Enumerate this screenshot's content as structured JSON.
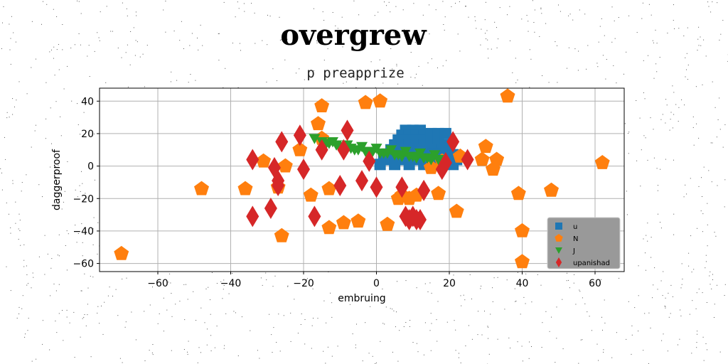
{
  "chart_data": {
    "type": "scatter",
    "title": "overgrew",
    "subtitle": "p preapprize",
    "xlabel": "embruing",
    "ylabel": "daggerproof",
    "xlim": [
      -76,
      68
    ],
    "ylim": [
      -65,
      48
    ],
    "xticks": [
      -60,
      -40,
      -20,
      0,
      20,
      40,
      60
    ],
    "yticks": [
      -60,
      -40,
      -20,
      0,
      20,
      40
    ],
    "xtick_labels": [
      "−60",
      "−40",
      "−20",
      "0",
      "20",
      "40",
      "60"
    ],
    "ytick_labels": [
      "−60",
      "−40",
      "−20",
      "0",
      "20",
      "40"
    ],
    "grid": true,
    "legend_position": "lower-right",
    "series": [
      {
        "name": "u",
        "marker": "square",
        "color": "#1f77b4",
        "x": [
          8,
          10,
          12,
          7,
          9,
          11,
          13,
          6,
          8,
          10,
          12,
          14,
          16,
          5,
          7,
          9,
          11,
          13,
          15,
          17,
          19,
          4,
          6,
          8,
          10,
          12,
          14,
          16,
          18,
          20,
          3,
          5,
          7,
          9,
          11,
          13,
          15,
          17,
          19,
          21,
          2,
          4,
          6,
          8,
          10,
          12,
          14,
          16,
          18,
          20,
          22,
          1,
          5,
          9,
          13,
          17,
          21,
          15,
          17,
          19
        ],
        "y": [
          22,
          22,
          22,
          19,
          19,
          19,
          19,
          16,
          16,
          16,
          16,
          16,
          16,
          13,
          13,
          13,
          13,
          13,
          13,
          13,
          13,
          10,
          10,
          10,
          10,
          10,
          10,
          10,
          10,
          10,
          7,
          7,
          7,
          7,
          7,
          7,
          7,
          7,
          7,
          7,
          4,
          4,
          4,
          4,
          4,
          4,
          4,
          4,
          4,
          4,
          4,
          1,
          1,
          1,
          1,
          1,
          1,
          20,
          20,
          20
        ]
      },
      {
        "name": "N",
        "marker": "pentagon",
        "color": "#ff7f0e",
        "x": [
          -70,
          -48,
          -36,
          -31,
          -27,
          -26,
          -25,
          -21,
          -18,
          -16,
          -15,
          -15,
          -13,
          -13,
          -9,
          -5,
          -3,
          1,
          3,
          6,
          7,
          9,
          11,
          15,
          17,
          18,
          22,
          23,
          29,
          30,
          32,
          33,
          36,
          39,
          40,
          40,
          48,
          62
        ],
        "y": [
          -54,
          -14,
          -14,
          3,
          -13,
          -43,
          0,
          10,
          -18,
          26,
          37,
          17,
          -38,
          -14,
          -35,
          -34,
          39,
          40,
          -36,
          -20,
          -18,
          -20,
          -18,
          -1,
          -17,
          3,
          -28,
          6,
          4,
          12,
          -2,
          4,
          43,
          -17,
          -40,
          -59,
          -15,
          2
        ]
      },
      {
        "name": "J",
        "marker": "triangle_down",
        "color": "#2ca02c",
        "x": [
          -17,
          -15,
          -13,
          -11,
          -9,
          -7,
          -5,
          -3,
          -1,
          1,
          3,
          5,
          7,
          9,
          11,
          13,
          15,
          17,
          -14,
          -10,
          -6,
          -2,
          2,
          6,
          10,
          14,
          -12,
          -8,
          -4,
          0,
          4,
          8,
          12,
          16
        ],
        "y": [
          17,
          15,
          14,
          13,
          12,
          11,
          10,
          9,
          9,
          8,
          8,
          7,
          6,
          6,
          5,
          5,
          4,
          4,
          13,
          11,
          10,
          9,
          8,
          7,
          6,
          5,
          15,
          13,
          12,
          11,
          10,
          9,
          8,
          7
        ]
      },
      {
        "name": "upanishad",
        "marker": "thin_diamond",
        "color": "#d62728",
        "x": [
          -34,
          -34,
          -29,
          -28,
          -27,
          -27,
          -26,
          -21,
          -20,
          -17,
          -15,
          -10,
          -9,
          -8,
          -4,
          -2,
          0,
          7,
          8,
          9,
          10,
          11,
          12,
          13,
          18,
          19,
          21,
          25
        ],
        "y": [
          4,
          -31,
          -26,
          -1,
          -9,
          -12,
          15,
          19,
          -2,
          -31,
          10,
          -12,
          10,
          22,
          -9,
          3,
          -13,
          -13,
          -31,
          -33,
          -31,
          -33,
          -33,
          -15,
          -2,
          2,
          15,
          4
        ]
      }
    ]
  }
}
